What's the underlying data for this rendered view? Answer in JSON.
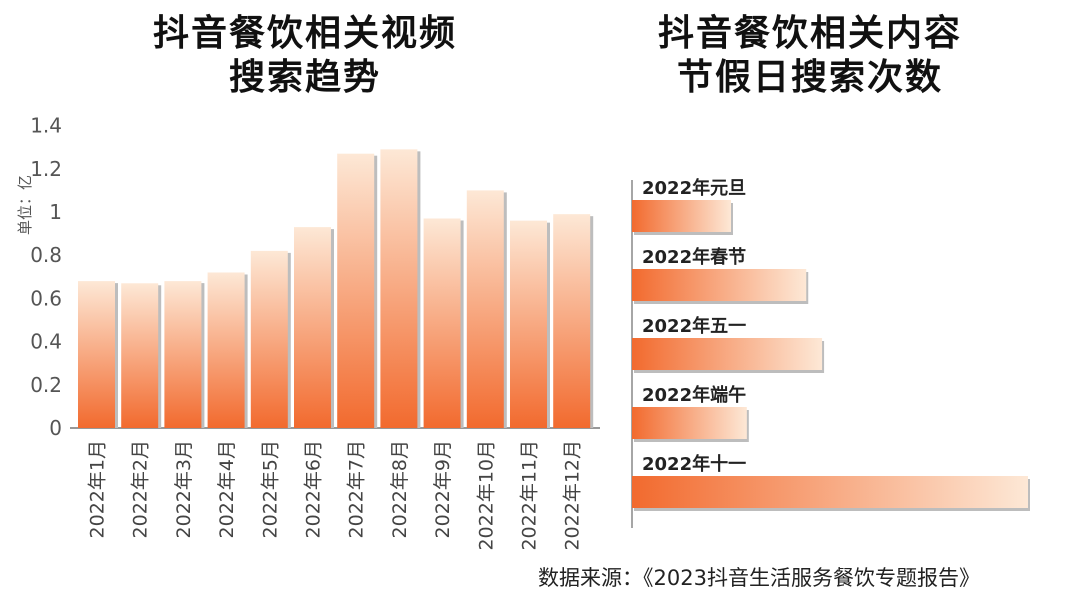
{
  "chart_data": [
    {
      "type": "bar",
      "title_lines": [
        "抖音餐饮相关视频",
        "搜索趋势"
      ],
      "ylabel": "单位：亿",
      "ylim": [
        0,
        1.4
      ],
      "yticks": [
        "0",
        "0.2",
        "0.4",
        "0.6",
        "0.8",
        "1",
        "1.2",
        "1.4"
      ],
      "ytick_values": [
        0,
        0.2,
        0.4,
        0.6,
        0.8,
        1,
        1.2,
        1.4
      ],
      "categories": [
        "2022年1月",
        "2022年2月",
        "2022年3月",
        "2022年4月",
        "2022年5月",
        "2022年6月",
        "2022年7月",
        "2022年8月",
        "2022年9月",
        "2022年10月",
        "2022年11月",
        "2022年12月"
      ],
      "values": [
        0.68,
        0.67,
        0.68,
        0.72,
        0.82,
        0.93,
        1.27,
        1.29,
        0.97,
        1.1,
        0.96,
        0.99
      ]
    },
    {
      "type": "bar",
      "orientation": "horizontal",
      "title_lines": [
        "抖音餐饮相关内容",
        "节假日搜索次数"
      ],
      "categories": [
        "2022年元旦",
        "2022年春节",
        "2022年五一",
        "2022年端午",
        "2022年十一"
      ],
      "values": [
        25,
        44,
        48,
        29,
        100
      ],
      "value_note": "relative lengths, no axis shown"
    }
  ],
  "source": "数据来源：《2023抖音生活服务餐饮专题报告》",
  "colors": {
    "bar_dark": "#f26a2e",
    "bar_light": "#fde8d6",
    "shadow": "#bdbdbd"
  }
}
